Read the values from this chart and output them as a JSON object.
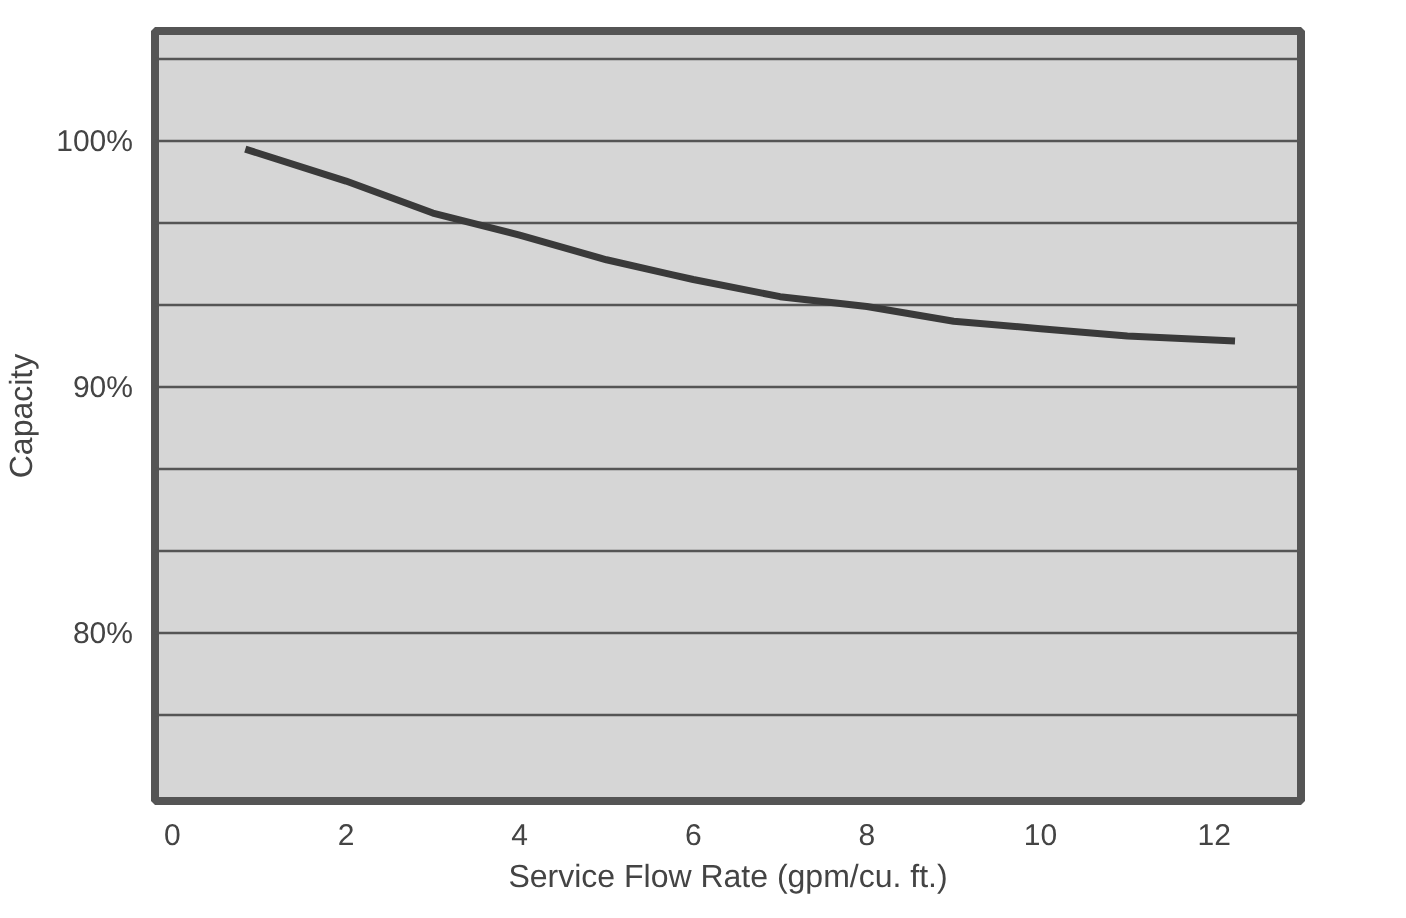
{
  "chart_data": {
    "type": "line",
    "xlabel": "Service Flow Rate (gpm/cu. ft.)",
    "ylabel": "Capacity",
    "x": [
      0.84,
      2,
      3,
      4,
      5,
      5.75,
      6,
      7,
      8,
      9,
      10,
      11,
      12.24
    ],
    "series": [
      {
        "color": "#3a3a3a",
        "values": [
          99.7,
          98.4,
          97.1,
          96.2,
          95.2,
          94.6,
          94.4,
          93.7,
          93.3,
          92.7,
          92.4,
          92.1,
          91.9
        ]
      }
    ],
    "xlim": [
      -0.2,
      13
    ],
    "ylim": [
      73.2,
      104.5
    ],
    "xticks": [
      0,
      2,
      4,
      6,
      8,
      10,
      12
    ],
    "yticks": [
      {
        "value": 76.67,
        "label": null
      },
      {
        "value": 80,
        "label": "80%"
      },
      {
        "value": 83.33,
        "label": null
      },
      {
        "value": 86.67,
        "label": null
      },
      {
        "value": 90,
        "label": "90%"
      },
      {
        "value": 93.33,
        "label": null
      },
      {
        "value": 96.67,
        "label": null
      },
      {
        "value": 100,
        "label": "100%"
      },
      {
        "value": 103.33,
        "label": null
      }
    ],
    "grid": "y",
    "line_style": "solid",
    "marker": "none"
  }
}
